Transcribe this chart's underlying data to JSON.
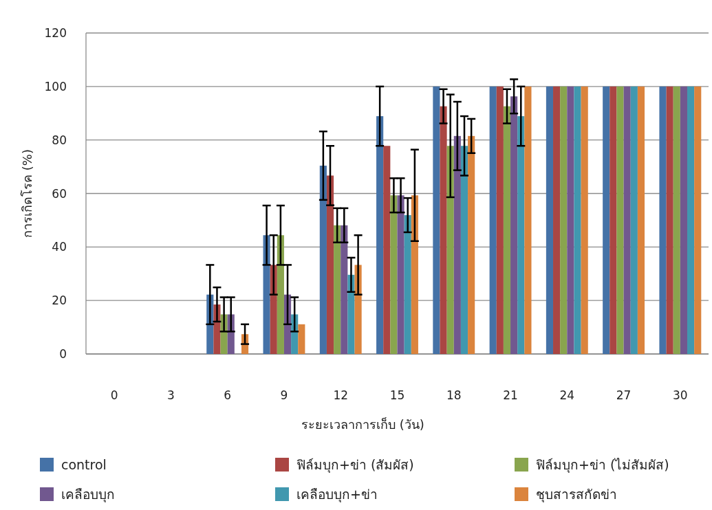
{
  "chart_data": {
    "type": "bar",
    "xlabel": "ระยะเวลาการเก็บ (วัน)",
    "ylabel": "การเกิดโรค (%)",
    "categories": [
      "0",
      "3",
      "6",
      "9",
      "12",
      "15",
      "18",
      "21",
      "24",
      "27",
      "30"
    ],
    "ylim": [
      0,
      120
    ],
    "yticks": [
      0,
      20,
      40,
      60,
      80,
      100,
      120
    ],
    "grid": "y",
    "legend": "bottom",
    "series": [
      {
        "name": "control",
        "color": "#4572a7",
        "values": [
          0,
          0,
          22.2,
          44.4,
          70.4,
          88.9,
          100,
          100,
          100,
          100,
          100
        ],
        "errors": [
          null,
          null,
          11.1,
          11.1,
          12.8,
          11.1,
          null,
          null,
          null,
          null,
          null
        ]
      },
      {
        "name": "ฟิล์มบุก+ข่า (สัมผัส)",
        "color": "#aa4643",
        "values": [
          0,
          0,
          18.5,
          33.3,
          66.7,
          77.8,
          92.6,
          100,
          100,
          100,
          100
        ],
        "errors": [
          null,
          null,
          6.4,
          11.1,
          11.1,
          null,
          6.4,
          null,
          null,
          null,
          null
        ]
      },
      {
        "name": "ฟิล์มบุก+ข่า (ไม่สัมผัส)",
        "color": "#89a54e",
        "values": [
          0,
          0,
          14.8,
          44.4,
          48.1,
          59.3,
          77.8,
          92.6,
          100,
          100,
          100
        ],
        "errors": [
          null,
          null,
          6.4,
          11.1,
          6.4,
          6.4,
          19.2,
          6.4,
          null,
          null,
          null
        ]
      },
      {
        "name": "เคลือบบุก",
        "color": "#71588f",
        "values": [
          0,
          0,
          14.8,
          22.2,
          48.1,
          59.3,
          81.5,
          96.3,
          100,
          100,
          100
        ],
        "errors": [
          null,
          null,
          6.4,
          11.1,
          6.4,
          6.4,
          12.8,
          6.4,
          null,
          null,
          null
        ]
      },
      {
        "name": "เคลือบบุก+ข่า",
        "color": "#4198af",
        "values": [
          0,
          0,
          0,
          14.8,
          29.6,
          51.9,
          77.8,
          88.9,
          100,
          100,
          100
        ],
        "errors": [
          null,
          null,
          null,
          6.4,
          6.4,
          6.4,
          11.1,
          11.1,
          null,
          null,
          null
        ]
      },
      {
        "name": "ชุบสารสกัดข่า",
        "color": "#db843d",
        "values": [
          0,
          0,
          7.4,
          11.1,
          33.3,
          59.3,
          81.5,
          100,
          100,
          100,
          100
        ],
        "errors": [
          null,
          null,
          3.7,
          null,
          11.1,
          17.1,
          6.4,
          null,
          null,
          null,
          null
        ]
      }
    ]
  }
}
